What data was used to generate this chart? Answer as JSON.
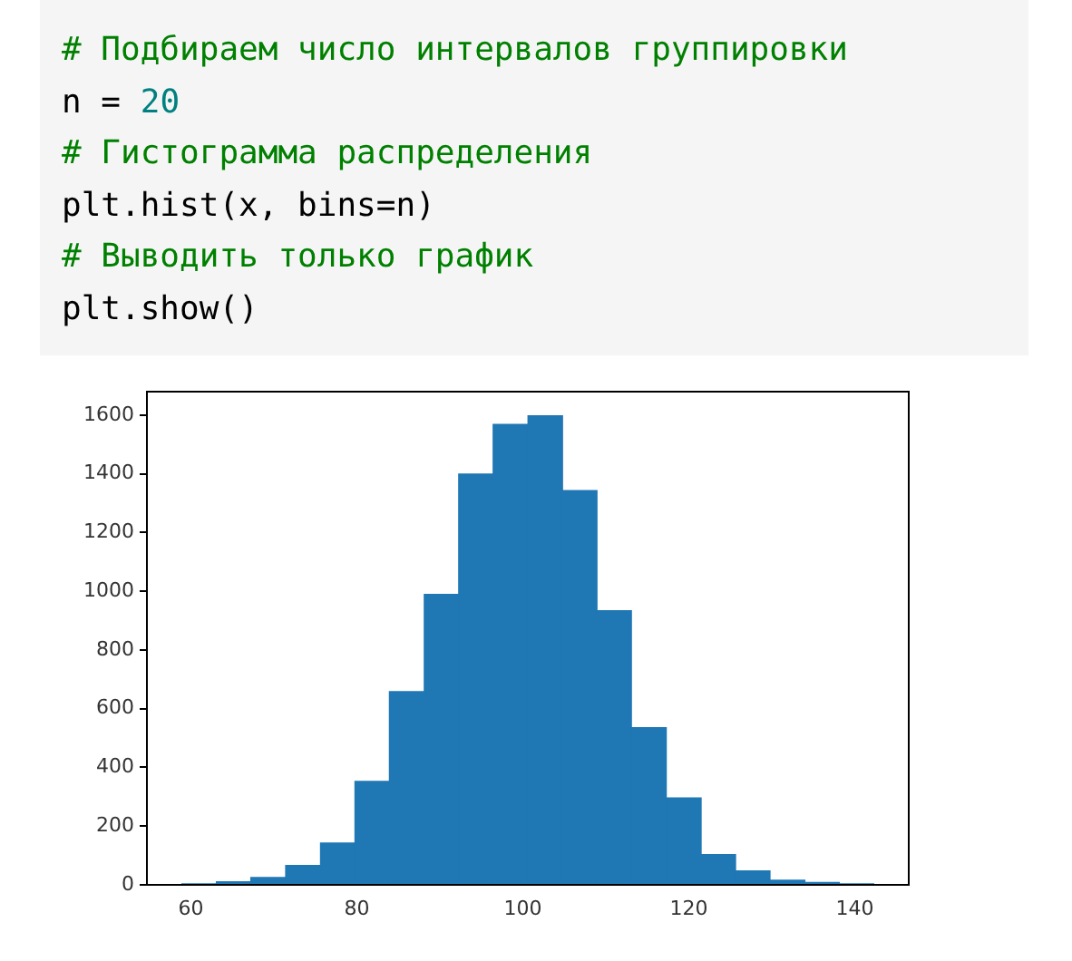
{
  "chart_data": {
    "type": "histogram",
    "annotations": [
      "# Подбираем число интервалов группировки",
      "n = 20",
      "# Гистограмма распределения",
      "plt.hist(x, bins=n)",
      "# Выводить только график",
      "plt.show()"
    ],
    "bins": [
      58.9,
      63.1,
      67.2,
      71.4,
      75.6,
      79.8,
      83.9,
      88.1,
      92.3,
      96.4,
      100.6,
      104.8,
      108.9,
      113.1,
      117.3,
      121.5,
      125.6,
      129.8,
      134.0,
      138.1,
      142.3
    ],
    "values": [
      1,
      10,
      25,
      66,
      142,
      352,
      658,
      989,
      1399,
      1568,
      1598,
      1343,
      934,
      535,
      296,
      103,
      47,
      16,
      8,
      1
    ],
    "color": "#1f77b4",
    "xlim": [
      54.7,
      146.5
    ],
    "xticks": [
      60,
      80,
      100,
      120,
      140
    ],
    "ylim": [
      0,
      1680
    ],
    "yticks": [
      0,
      200,
      400,
      600,
      800,
      1000,
      1200,
      1400,
      1600
    ],
    "grid": false,
    "legend": false
  }
}
